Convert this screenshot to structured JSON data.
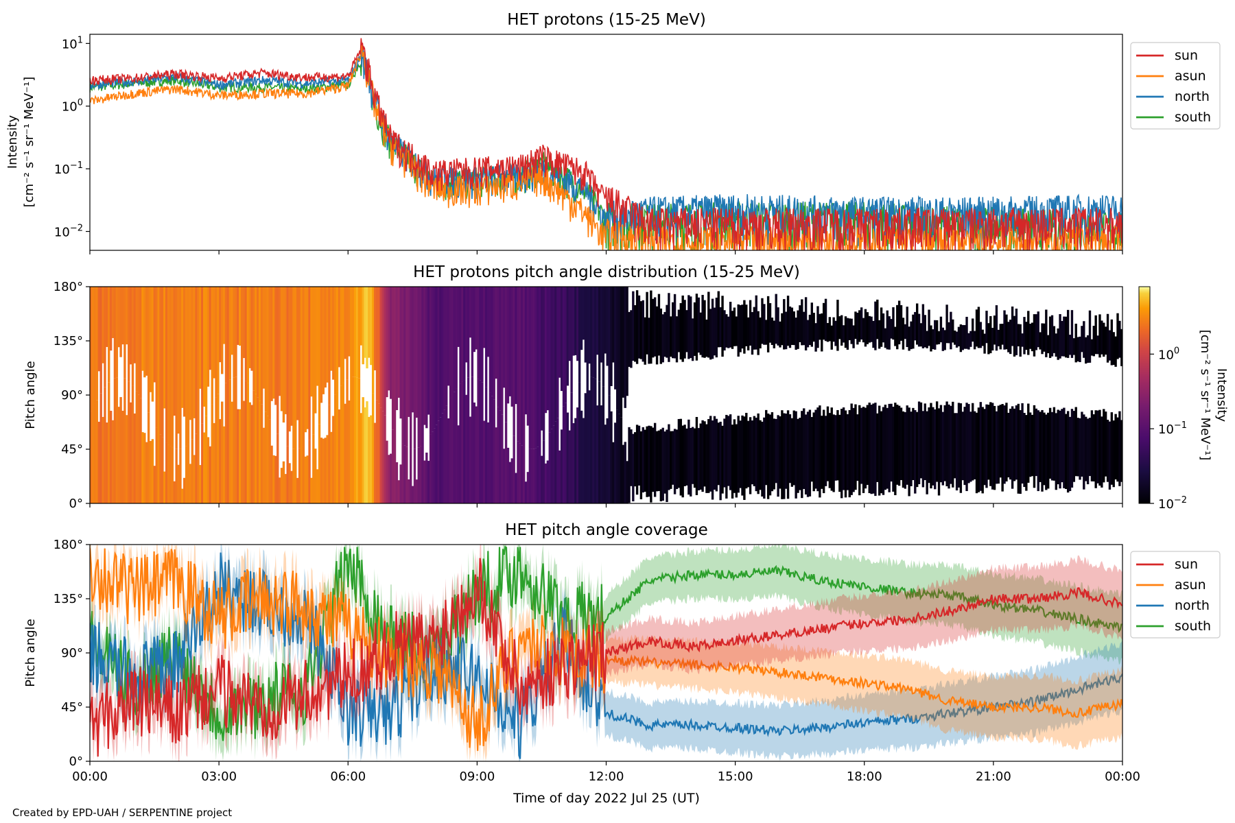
{
  "figure": {
    "credit": "Created by EPD-UAH / SERPENTINE project"
  },
  "colors": {
    "sun": "#d62728",
    "asun": "#ff7f0e",
    "north": "#1f77b4",
    "south": "#2ca02c"
  },
  "chart_data": [
    {
      "type": "line",
      "title": "HET protons (15-25 MeV)",
      "ylabel": "Intensity",
      "ylabel_units": "[cm⁻² s⁻¹ sr⁻¹ MeV⁻¹]",
      "yscale": "log",
      "ylim": [
        0.005,
        14
      ],
      "yticks": [
        {
          "value": 10,
          "base": "10",
          "exp": "1"
        },
        {
          "value": 1,
          "base": "10",
          "exp": "0"
        },
        {
          "value": 0.1,
          "base": "10",
          "exp": "−1"
        },
        {
          "value": 0.01,
          "base": "10",
          "exp": "−2"
        }
      ],
      "x": [
        "00:00",
        "01:00",
        "02:00",
        "03:00",
        "04:00",
        "05:00",
        "06:00",
        "06:20",
        "06:40",
        "07:00",
        "08:00",
        "09:00",
        "10:00",
        "10:30",
        "11:30",
        "12:00",
        "13:00",
        "15:00",
        "18:00",
        "21:00",
        "24:00"
      ],
      "series": [
        {
          "name": "sun",
          "values": [
            2.6,
            2.8,
            3.3,
            2.8,
            3.4,
            2.9,
            3.0,
            9.0,
            1.2,
            0.3,
            0.09,
            0.1,
            0.11,
            0.16,
            0.09,
            0.03,
            0.012,
            0.012,
            0.012,
            0.012,
            0.012
          ]
        },
        {
          "name": "asun",
          "values": [
            1.2,
            1.6,
            1.9,
            1.5,
            1.6,
            1.6,
            2.1,
            8.0,
            0.8,
            0.25,
            0.05,
            0.05,
            0.06,
            0.08,
            0.02,
            0.008,
            0.006,
            0.006,
            0.006,
            0.006,
            0.006
          ]
        },
        {
          "name": "north",
          "values": [
            2.2,
            2.5,
            2.9,
            2.2,
            2.6,
            2.3,
            2.6,
            7.0,
            1.0,
            0.28,
            0.07,
            0.07,
            0.08,
            0.1,
            0.05,
            0.015,
            0.018,
            0.02,
            0.018,
            0.018,
            0.02
          ]
        },
        {
          "name": "south",
          "values": [
            2.0,
            2.3,
            2.6,
            2.0,
            2.0,
            1.9,
            2.2,
            6.0,
            0.9,
            0.27,
            0.06,
            0.07,
            0.08,
            0.12,
            0.05,
            0.015,
            0.014,
            0.015,
            0.015,
            0.012,
            0.01
          ]
        }
      ],
      "legend": "right"
    },
    {
      "type": "heatmap",
      "title": "HET protons pitch angle distribution (15-25 MeV)",
      "ylabel": "Pitch angle",
      "ylim": [
        0,
        180
      ],
      "yticks": [
        "0°",
        "45°",
        "90°",
        "135°",
        "180°"
      ],
      "colorbar": {
        "label": "Intensity",
        "units": "[cm⁻² s⁻¹ sr⁻¹ MeV⁻¹]",
        "scale": "log",
        "range": [
          0.01,
          8
        ],
        "ticks": [
          {
            "value": 1,
            "base": "10",
            "exp": "0"
          },
          {
            "value": 0.1,
            "base": "10",
            "exp": "−1"
          },
          {
            "value": 0.01,
            "base": "10",
            "exp": "−2"
          }
        ],
        "colormap": "inferno"
      },
      "x": [
        "00:00",
        "01:00",
        "02:00",
        "03:00",
        "04:00",
        "05:00",
        "06:00",
        "06:30",
        "07:00",
        "08:00",
        "09:00",
        "10:00",
        "11:00",
        "12:00",
        "13:00",
        "15:00",
        "18:00",
        "21:00",
        "24:00"
      ],
      "intensity": [
        2.5,
        2.8,
        3.0,
        2.6,
        2.9,
        2.6,
        3.5,
        6.0,
        0.3,
        0.09,
        0.09,
        0.1,
        0.05,
        0.02,
        0.012,
        0.012,
        0.012,
        0.012,
        0.012
      ]
    },
    {
      "type": "line",
      "title": "HET pitch angle coverage",
      "ylabel": "Pitch angle",
      "xlabel": "Time of day 2022 Jul 25 (UT)",
      "ylim": [
        0,
        180
      ],
      "yticks": [
        "0°",
        "45°",
        "90°",
        "135°",
        "180°"
      ],
      "xticks": [
        "00:00",
        "03:00",
        "06:00",
        "09:00",
        "12:00",
        "15:00",
        "18:00",
        "21:00",
        "00:00"
      ],
      "x_hours": [
        0,
        1,
        2,
        3,
        4,
        5,
        6,
        7,
        8,
        9,
        10,
        11,
        12,
        13,
        14,
        15,
        16,
        17,
        18,
        19,
        20,
        21,
        22,
        23,
        24
      ],
      "series": [
        {
          "name": "sun",
          "values": [
            30,
            50,
            40,
            60,
            45,
            55,
            70,
            95,
            100,
            150,
            60,
            80,
            90,
            100,
            95,
            100,
            105,
            110,
            115,
            118,
            125,
            135,
            135,
            140,
            130
          ]
        },
        {
          "name": "asun",
          "values": [
            160,
            140,
            150,
            120,
            135,
            130,
            110,
            85,
            80,
            30,
            100,
            90,
            85,
            82,
            80,
            78,
            74,
            70,
            65,
            60,
            50,
            45,
            45,
            40,
            48
          ]
        },
        {
          "name": "north",
          "values": [
            90,
            70,
            80,
            145,
            130,
            120,
            40,
            40,
            80,
            70,
            30,
            100,
            40,
            30,
            30,
            28,
            25,
            28,
            32,
            35,
            40,
            45,
            50,
            60,
            70
          ]
        },
        {
          "name": "south",
          "values": [
            100,
            60,
            90,
            40,
            50,
            60,
            165,
            100,
            90,
            140,
            160,
            120,
            120,
            150,
            155,
            155,
            158,
            150,
            145,
            140,
            138,
            130,
            125,
            118,
            110
          ]
        }
      ],
      "spread": 18,
      "legend": "right"
    }
  ]
}
